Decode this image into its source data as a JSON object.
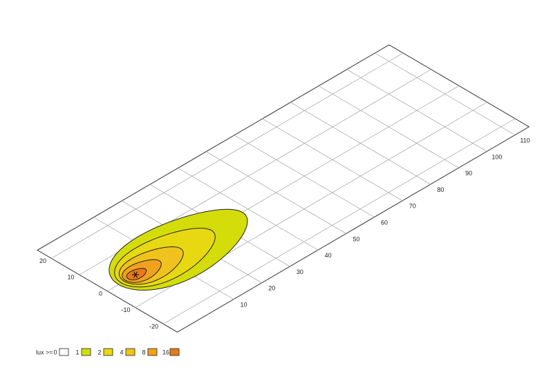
{
  "chart_data": {
    "type": "isolux",
    "xlim": [
      -10,
      115
    ],
    "ylim": [
      -25,
      25
    ],
    "xticks": [
      10,
      20,
      30,
      40,
      50,
      60,
      70,
      80,
      90,
      100,
      110
    ],
    "yticks": [
      -20,
      -10,
      0,
      10,
      20
    ],
    "legend_title": "lux >=",
    "levels": [
      {
        "value": 0,
        "color": "#ffffff"
      },
      {
        "value": 1,
        "color": "#d4dc0a"
      },
      {
        "value": 2,
        "color": "#e8d812"
      },
      {
        "value": 4,
        "color": "#efc21e"
      },
      {
        "value": 8,
        "color": "#f0a11e"
      },
      {
        "value": 16,
        "color": "#e8791c"
      }
    ],
    "contours": [
      {
        "level": 1,
        "center": 16,
        "reach": 22,
        "halfwidth": 11
      },
      {
        "level": 2,
        "center": 11,
        "reach": 16,
        "halfwidth": 8
      },
      {
        "level": 4,
        "center": 6,
        "reach": 10,
        "halfwidth": 5.5
      },
      {
        "level": 8,
        "center": 2.5,
        "reach": 6,
        "halfwidth": 3.5
      },
      {
        "level": 16,
        "center": 0.5,
        "reach": 3,
        "halfwidth": 1.8
      }
    ]
  }
}
